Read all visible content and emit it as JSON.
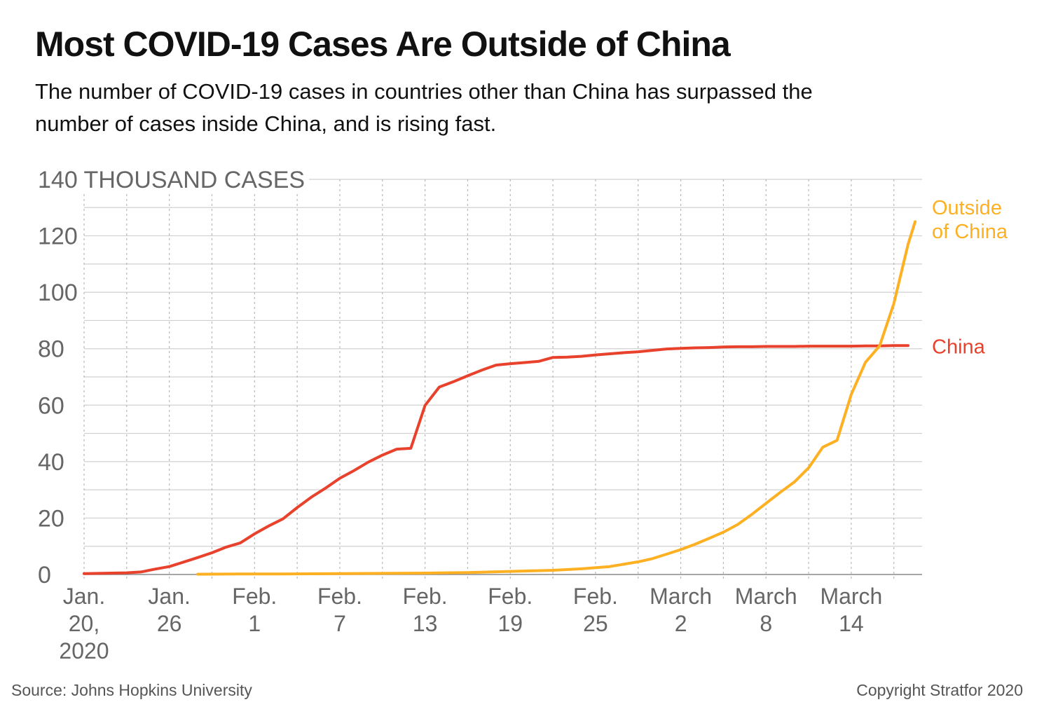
{
  "title": "Most COVID-19 Cases Are Outside of China",
  "subtitle": "The number of COVID-19 cases in countries other than China has surpassed the number of cases inside China, and is rising fast.",
  "source": "Source: Johns Hopkins University",
  "copyright": "Copyright Stratfor 2020",
  "colors": {
    "china": "#E8412C",
    "outside": "#FDB022",
    "grid": "#d0d0d0",
    "axis_text": "#666666"
  },
  "chart_data": {
    "type": "line",
    "ylim": [
      0,
      140
    ],
    "ylabel": "140 THOUSAND CASES",
    "y_ticks": [
      {
        "value": 0,
        "label": "0"
      },
      {
        "value": 20,
        "label": "20"
      },
      {
        "value": 40,
        "label": "40"
      },
      {
        "value": 60,
        "label": "60"
      },
      {
        "value": 80,
        "label": "80"
      },
      {
        "value": 100,
        "label": "100"
      },
      {
        "value": 120,
        "label": "120"
      },
      {
        "value": 140,
        "label": "140 THOUSAND CASES"
      }
    ],
    "x_range": [
      "2020-01-20",
      "2020-03-18"
    ],
    "x_ticks": [
      {
        "date": "2020-01-20",
        "lines": [
          "Jan.",
          "20,",
          "2020"
        ]
      },
      {
        "date": "2020-01-26",
        "lines": [
          "Jan.",
          "26"
        ]
      },
      {
        "date": "2020-02-01",
        "lines": [
          "Feb.",
          "1"
        ]
      },
      {
        "date": "2020-02-07",
        "lines": [
          "Feb.",
          "7"
        ]
      },
      {
        "date": "2020-02-13",
        "lines": [
          "Feb.",
          "13"
        ]
      },
      {
        "date": "2020-02-19",
        "lines": [
          "Feb.",
          "19"
        ]
      },
      {
        "date": "2020-02-25",
        "lines": [
          "Feb.",
          "25"
        ]
      },
      {
        "date": "2020-03-02",
        "lines": [
          "March",
          "2"
        ]
      },
      {
        "date": "2020-03-08",
        "lines": [
          "March",
          "8"
        ]
      },
      {
        "date": "2020-03-14",
        "lines": [
          "March",
          "14"
        ]
      }
    ],
    "grid": true,
    "series": [
      {
        "name": "China",
        "label_lines": [
          "China"
        ],
        "color": "#E8412C",
        "points": [
          [
            "2020-01-20",
            0.3
          ],
          [
            "2020-01-21",
            0.4
          ],
          [
            "2020-01-22",
            0.5
          ],
          [
            "2020-01-23",
            0.6
          ],
          [
            "2020-01-24",
            0.9
          ],
          [
            "2020-01-25",
            1.9
          ],
          [
            "2020-01-26",
            2.8
          ],
          [
            "2020-01-27",
            4.4
          ],
          [
            "2020-01-28",
            6.0
          ],
          [
            "2020-01-29",
            7.7
          ],
          [
            "2020-01-30",
            9.7
          ],
          [
            "2020-01-31",
            11.2
          ],
          [
            "2020-02-01",
            14.4
          ],
          [
            "2020-02-02",
            17.2
          ],
          [
            "2020-02-03",
            19.7
          ],
          [
            "2020-02-04",
            23.7
          ],
          [
            "2020-02-05",
            27.4
          ],
          [
            "2020-02-06",
            30.6
          ],
          [
            "2020-02-07",
            34.1
          ],
          [
            "2020-02-08",
            36.8
          ],
          [
            "2020-02-09",
            39.8
          ],
          [
            "2020-02-10",
            42.3
          ],
          [
            "2020-02-11",
            44.4
          ],
          [
            "2020-02-12",
            44.7
          ],
          [
            "2020-02-13",
            59.9
          ],
          [
            "2020-02-14",
            66.4
          ],
          [
            "2020-02-15",
            68.3
          ],
          [
            "2020-02-16",
            70.4
          ],
          [
            "2020-02-17",
            72.4
          ],
          [
            "2020-02-18",
            74.2
          ],
          [
            "2020-02-19",
            74.7
          ],
          [
            "2020-02-20",
            75.1
          ],
          [
            "2020-02-21",
            75.5
          ],
          [
            "2020-02-22",
            76.9
          ],
          [
            "2020-02-23",
            77.0
          ],
          [
            "2020-02-24",
            77.3
          ],
          [
            "2020-02-25",
            77.8
          ],
          [
            "2020-02-26",
            78.2
          ],
          [
            "2020-02-27",
            78.6
          ],
          [
            "2020-02-28",
            78.9
          ],
          [
            "2020-02-29",
            79.4
          ],
          [
            "2020-03-01",
            79.9
          ],
          [
            "2020-03-02",
            80.1
          ],
          [
            "2020-03-03",
            80.3
          ],
          [
            "2020-03-04",
            80.4
          ],
          [
            "2020-03-05",
            80.6
          ],
          [
            "2020-03-06",
            80.7
          ],
          [
            "2020-03-07",
            80.7
          ],
          [
            "2020-03-08",
            80.8
          ],
          [
            "2020-03-09",
            80.8
          ],
          [
            "2020-03-10",
            80.8
          ],
          [
            "2020-03-11",
            80.9
          ],
          [
            "2020-03-12",
            80.9
          ],
          [
            "2020-03-13",
            80.9
          ],
          [
            "2020-03-14",
            80.9
          ],
          [
            "2020-03-15",
            81.0
          ],
          [
            "2020-03-16",
            81.0
          ],
          [
            "2020-03-17",
            81.1
          ],
          [
            "2020-03-18",
            81.1
          ]
        ]
      },
      {
        "name": "Outside of China",
        "label_lines": [
          "Outside",
          "of China"
        ],
        "color": "#FDB022",
        "points": [
          [
            "2020-01-28",
            0.1
          ],
          [
            "2020-01-31",
            0.2
          ],
          [
            "2020-02-03",
            0.2
          ],
          [
            "2020-02-07",
            0.3
          ],
          [
            "2020-02-10",
            0.4
          ],
          [
            "2020-02-13",
            0.5
          ],
          [
            "2020-02-16",
            0.7
          ],
          [
            "2020-02-19",
            1.1
          ],
          [
            "2020-02-22",
            1.5
          ],
          [
            "2020-02-24",
            2.0
          ],
          [
            "2020-02-26",
            2.8
          ],
          [
            "2020-02-28",
            4.5
          ],
          [
            "2020-02-29",
            5.6
          ],
          [
            "2020-03-01",
            7.2
          ],
          [
            "2020-03-02",
            8.8
          ],
          [
            "2020-03-03",
            10.7
          ],
          [
            "2020-03-04",
            12.8
          ],
          [
            "2020-03-05",
            15.0
          ],
          [
            "2020-03-06",
            17.7
          ],
          [
            "2020-03-07",
            21.3
          ],
          [
            "2020-03-08",
            25.2
          ],
          [
            "2020-03-09",
            29.1
          ],
          [
            "2020-03-10",
            32.8
          ],
          [
            "2020-03-11",
            37.8
          ],
          [
            "2020-03-12",
            45.1
          ],
          [
            "2020-03-13",
            47.5
          ],
          [
            "2020-03-14",
            63.8
          ],
          [
            "2020-03-15",
            75.2
          ],
          [
            "2020-03-16",
            81.0
          ],
          [
            "2020-03-17",
            96.0
          ],
          [
            "2020-03-18",
            117.0
          ],
          [
            "2020-03-18.5",
            125.0
          ]
        ]
      }
    ]
  }
}
